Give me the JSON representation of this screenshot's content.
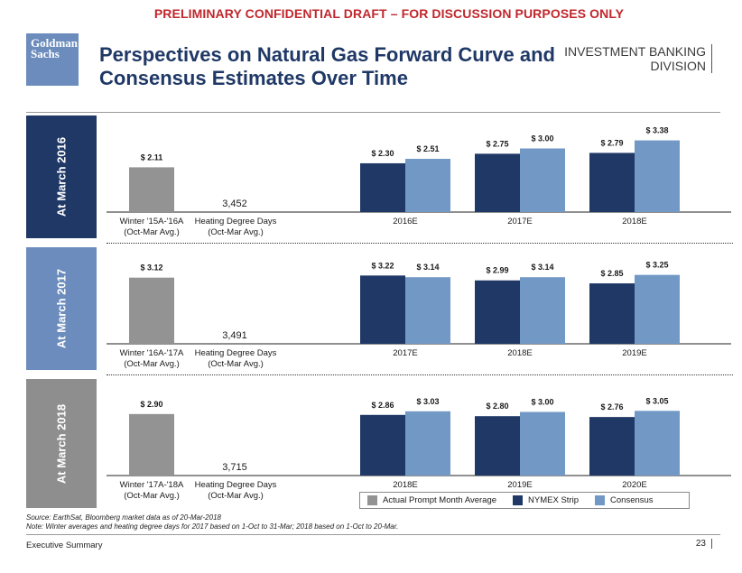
{
  "banner": "PRELIMINARY CONFIDENTIAL DRAFT – FOR DISCUSSION PURPOSES ONLY",
  "logo": {
    "line1": "Goldman",
    "line2": "Sachs"
  },
  "title": {
    "line1": "Perspectives on Natural Gas Forward Curve and",
    "line2": "Consensus Estimates Over Time"
  },
  "division": {
    "line1": "INVESTMENT BANKING",
    "line2": "DIVISION"
  },
  "colors": {
    "actual": "#939393",
    "nymex": "#1f3866",
    "consensus": "#7299c6"
  },
  "chart_data": [
    {
      "type": "bar",
      "panel_label": "At March 2016",
      "actual": {
        "value": 2.11,
        "label": "$ 2.11",
        "category": [
          "Winter '15A-'16A",
          "(Oct-Mar Avg.)"
        ]
      },
      "hdd": {
        "value": 3452,
        "label": "3,452",
        "category": [
          "Heating Degree Days",
          "(Oct-Mar Avg.)"
        ]
      },
      "categories": [
        "2016E",
        "2017E",
        "2018E"
      ],
      "series": [
        {
          "name": "NYMEX Strip",
          "values": [
            2.3,
            2.75,
            2.79
          ],
          "labels": [
            "$ 2.30",
            "$ 2.75",
            "$ 2.79"
          ]
        },
        {
          "name": "Consensus",
          "values": [
            2.51,
            3.0,
            3.38
          ],
          "labels": [
            "$ 2.51",
            "$ 3.00",
            "$ 3.38"
          ]
        }
      ]
    },
    {
      "type": "bar",
      "panel_label": "At March 2017",
      "actual": {
        "value": 3.12,
        "label": "$ 3.12",
        "category": [
          "Winter '16A-'17A",
          "(Oct-Mar Avg.)"
        ]
      },
      "hdd": {
        "value": 3491,
        "label": "3,491",
        "category": [
          "Heating Degree Days",
          "(Oct-Mar Avg.)"
        ]
      },
      "categories": [
        "2017E",
        "2018E",
        "2019E"
      ],
      "series": [
        {
          "name": "NYMEX Strip",
          "values": [
            3.22,
            2.99,
            2.85
          ],
          "labels": [
            "$ 3.22",
            "$ 2.99",
            "$ 2.85"
          ]
        },
        {
          "name": "Consensus",
          "values": [
            3.14,
            3.14,
            3.25
          ],
          "labels": [
            "$ 3.14",
            "$ 3.14",
            "$ 3.25"
          ]
        }
      ]
    },
    {
      "type": "bar",
      "panel_label": "At March 2018",
      "actual": {
        "value": 2.9,
        "label": "$ 2.90",
        "category": [
          "Winter '17A-'18A",
          "(Oct-Mar Avg.)"
        ]
      },
      "hdd": {
        "value": 3715,
        "label": "3,715",
        "category": [
          "Heating Degree Days",
          "(Oct-Mar Avg.)"
        ]
      },
      "categories": [
        "2018E",
        "2019E",
        "2020E"
      ],
      "series": [
        {
          "name": "NYMEX Strip",
          "values": [
            2.86,
            2.8,
            2.76
          ],
          "labels": [
            "$ 2.86",
            "$ 2.80",
            "$ 2.76"
          ]
        },
        {
          "name": "Consensus",
          "values": [
            3.03,
            3.0,
            3.05
          ],
          "labels": [
            "$ 3.03",
            "$ 3.00",
            "$ 3.05"
          ]
        }
      ]
    }
  ],
  "legend": {
    "actual": "Actual Prompt Month Average",
    "nymex": "NYMEX Strip",
    "consensus": "Consensus"
  },
  "source": {
    "line1": "Source: EarthSat, Bloomberg market data as of 20-Mar-2018",
    "line2": "Note: Winter averages and heating degree days for 2017 based on 1-Oct to 31-Mar; 2018 based on 1-Oct to 20-Mar."
  },
  "footer": {
    "left": "Executive Summary",
    "page": "23"
  }
}
